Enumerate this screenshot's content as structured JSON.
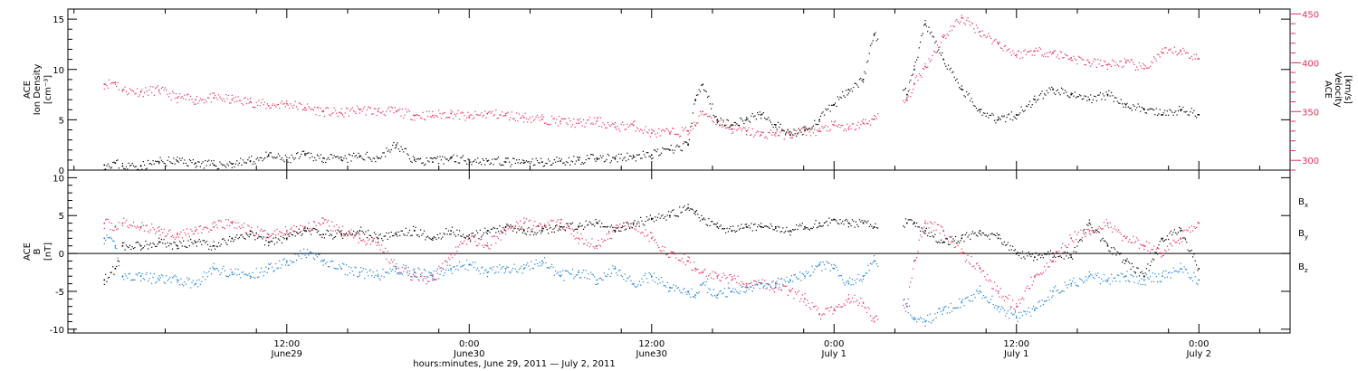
{
  "colors": {
    "black": "#000000",
    "pink": "#e8305a",
    "blue": "#1a7fd8"
  },
  "chart_data": [
    {
      "type": "scatter",
      "panel": "top",
      "ylabel_left": [
        "ACE",
        "Ion Density",
        "[cm⁻³]"
      ],
      "ylabel_right": [
        "ACE",
        "Velocity",
        "[km/s]"
      ],
      "ylim_left": [
        0,
        16
      ],
      "ylim_right": [
        290,
        455
      ],
      "yticks_left": [
        "0",
        "5",
        "10",
        "15"
      ],
      "yticks_right": [
        "300",
        "350",
        "400",
        "450"
      ],
      "series": [
        {
          "color": "#000000",
          "axis": "left",
          "x": [
            0.0,
            0.03,
            0.05,
            0.1,
            0.15,
            0.2,
            0.25,
            0.3,
            0.35,
            0.4,
            0.45,
            0.5,
            0.55,
            0.6,
            0.65,
            0.7,
            0.75,
            0.8,
            0.85,
            0.9,
            0.95,
            1.0,
            1.05,
            1.1,
            1.15,
            1.2,
            1.25,
            1.3,
            1.35,
            1.4,
            1.45,
            1.5,
            1.55,
            1.6,
            1.62,
            1.64,
            1.68,
            1.72,
            1.76,
            1.8,
            1.84,
            1.88,
            1.92,
            1.96,
            2.0,
            2.04,
            2.08,
            2.11,
            2.2,
            2.22,
            2.25,
            2.3,
            2.35,
            2.4,
            2.45,
            2.5,
            2.55,
            2.6,
            2.65,
            2.7,
            2.75,
            2.8,
            2.85,
            2.9,
            2.95,
            3.0
          ],
          "y": [
            0.5,
            0.7,
            0.4,
            0.4,
            0.8,
            0.9,
            0.7,
            0.5,
            0.6,
            0.9,
            1.4,
            1.0,
            1.5,
            1.2,
            1.0,
            1.4,
            1.2,
            2.5,
            1.0,
            0.8,
            1.2,
            1.0,
            0.9,
            0.8,
            0.7,
            0.8,
            0.9,
            1.0,
            1.2,
            1.1,
            1.3,
            1.5,
            2.0,
            2.5,
            7.0,
            8.5,
            5.0,
            4.5,
            5.0,
            5.5,
            4.5,
            3.5,
            4.0,
            5.0,
            6.5,
            8.0,
            9.0,
            13.5,
            7.5,
            10.0,
            14.5,
            11.0,
            8.0,
            6.0,
            5.0,
            5.5,
            7.0,
            8.0,
            7.5,
            7.0,
            7.5,
            6.5,
            6.0,
            5.5,
            6.0,
            5.5
          ]
        },
        {
          "color": "#e8305a",
          "axis": "right",
          "x": [
            0.0,
            0.03,
            0.05,
            0.1,
            0.15,
            0.2,
            0.25,
            0.3,
            0.35,
            0.4,
            0.45,
            0.5,
            0.55,
            0.6,
            0.65,
            0.7,
            0.75,
            0.8,
            0.85,
            0.9,
            0.95,
            1.0,
            1.05,
            1.1,
            1.15,
            1.2,
            1.25,
            1.3,
            1.35,
            1.4,
            1.45,
            1.5,
            1.55,
            1.6,
            1.62,
            1.64,
            1.68,
            1.72,
            1.76,
            1.8,
            1.84,
            1.88,
            1.92,
            1.96,
            2.0,
            2.04,
            2.08,
            2.11,
            2.2,
            2.22,
            2.25,
            2.3,
            2.35,
            2.4,
            2.45,
            2.5,
            2.55,
            2.6,
            2.65,
            2.7,
            2.75,
            2.8,
            2.85,
            2.9,
            2.95,
            3.0
          ],
          "y": [
            378,
            380,
            372,
            370,
            372,
            364,
            362,
            364,
            362,
            360,
            356,
            358,
            354,
            350,
            348,
            352,
            350,
            350,
            346,
            346,
            348,
            344,
            348,
            346,
            344,
            342,
            340,
            338,
            340,
            334,
            336,
            328,
            328,
            330,
            336,
            350,
            340,
            332,
            330,
            326,
            328,
            326,
            330,
            330,
            336,
            332,
            338,
            342,
            362,
            378,
            396,
            426,
            446,
            432,
            420,
            408,
            412,
            410,
            405,
            400,
            398,
            400,
            394,
            410,
            412,
            404
          ]
        }
      ]
    },
    {
      "type": "scatter",
      "panel": "bottom",
      "ylabel_left": [
        "ACE",
        "B",
        "[nT]"
      ],
      "ylim": [
        -10.5,
        11
      ],
      "yticks": [
        "-10",
        "-5",
        "0",
        "5",
        "10"
      ],
      "legend": [
        {
          "name": "Bx",
          "sub": "x",
          "color": "#000000"
        },
        {
          "name": "By",
          "sub": "y",
          "color": "#1a7fd8"
        },
        {
          "name": "Bz",
          "sub": "z",
          "color": "#e8305a"
        }
      ],
      "series": [
        {
          "name": "Bx",
          "color": "#000000",
          "x": [
            0.0,
            0.03,
            0.05,
            0.1,
            0.15,
            0.2,
            0.25,
            0.3,
            0.35,
            0.4,
            0.45,
            0.5,
            0.55,
            0.6,
            0.65,
            0.7,
            0.75,
            0.8,
            0.85,
            0.9,
            0.95,
            1.0,
            1.05,
            1.1,
            1.15,
            1.2,
            1.25,
            1.3,
            1.35,
            1.4,
            1.45,
            1.5,
            1.55,
            1.6,
            1.62,
            1.64,
            1.68,
            1.72,
            1.76,
            1.8,
            1.84,
            1.88,
            1.92,
            1.96,
            2.0,
            2.04,
            2.08,
            2.11,
            2.2,
            2.22,
            2.25,
            2.3,
            2.35,
            2.4,
            2.45,
            2.5,
            2.55,
            2.6,
            2.65,
            2.7,
            2.75,
            2.8,
            2.85,
            2.9,
            2.95,
            3.0
          ],
          "y": [
            -3.5,
            -2.0,
            1.0,
            1.0,
            1.5,
            1.0,
            1.5,
            1.0,
            2.0,
            2.5,
            1.5,
            2.0,
            3.0,
            2.5,
            2.5,
            3.0,
            2.0,
            2.5,
            3.0,
            2.0,
            3.0,
            2.0,
            3.0,
            3.5,
            3.0,
            3.0,
            3.5,
            3.5,
            4.0,
            3.0,
            4.0,
            4.5,
            5.0,
            6.0,
            5.5,
            4.5,
            3.5,
            3.0,
            3.5,
            3.5,
            3.5,
            3.0,
            3.5,
            4.0,
            4.5,
            4.0,
            4.0,
            3.5,
            4.0,
            4.0,
            3.0,
            1.5,
            2.0,
            3.0,
            2.0,
            0.0,
            -0.5,
            0.0,
            -0.5,
            4.0,
            1.0,
            -1.0,
            -3.0,
            2.0,
            3.0,
            -2.0
          ]
        },
        {
          "name": "By",
          "color": "#1a7fd8",
          "x": [
            0.0,
            0.03,
            0.05,
            0.1,
            0.15,
            0.2,
            0.25,
            0.3,
            0.35,
            0.4,
            0.45,
            0.5,
            0.55,
            0.6,
            0.65,
            0.7,
            0.75,
            0.8,
            0.85,
            0.9,
            0.95,
            1.0,
            1.05,
            1.1,
            1.15,
            1.2,
            1.25,
            1.3,
            1.35,
            1.4,
            1.45,
            1.5,
            1.55,
            1.6,
            1.62,
            1.64,
            1.68,
            1.72,
            1.76,
            1.8,
            1.84,
            1.88,
            1.92,
            1.96,
            2.0,
            2.04,
            2.08,
            2.11,
            2.2,
            2.22,
            2.25,
            2.3,
            2.35,
            2.4,
            2.45,
            2.5,
            2.55,
            2.6,
            2.65,
            2.7,
            2.75,
            2.8,
            2.85,
            2.9,
            2.95,
            3.0
          ],
          "y": [
            2.0,
            1.0,
            -3.0,
            -3.0,
            -3.5,
            -3.5,
            -4.0,
            -2.0,
            -2.5,
            -3.0,
            -2.0,
            -1.0,
            0.0,
            -1.0,
            -2.0,
            -2.5,
            -3.0,
            -2.0,
            -2.5,
            -3.0,
            -2.0,
            -1.5,
            -2.5,
            -2.0,
            -2.0,
            -1.0,
            -3.0,
            -2.5,
            -3.5,
            -2.0,
            -4.0,
            -3.0,
            -4.5,
            -5.0,
            -5.5,
            -4.0,
            -5.5,
            -5.0,
            -4.5,
            -4.0,
            -4.0,
            -3.5,
            -3.0,
            -1.5,
            -2.0,
            -4.0,
            -3.0,
            -1.0,
            -7.0,
            -8.5,
            -9.0,
            -7.5,
            -6.5,
            -5.0,
            -7.0,
            -8.5,
            -7.5,
            -5.0,
            -4.0,
            -3.0,
            -3.5,
            -3.0,
            -3.5,
            -3.0,
            -2.0,
            -3.5
          ]
        },
        {
          "name": "Bz",
          "color": "#e8305a",
          "x": [
            0.0,
            0.03,
            0.05,
            0.1,
            0.15,
            0.2,
            0.25,
            0.3,
            0.35,
            0.4,
            0.45,
            0.5,
            0.55,
            0.6,
            0.65,
            0.7,
            0.75,
            0.8,
            0.85,
            0.9,
            0.95,
            1.0,
            1.05,
            1.1,
            1.15,
            1.2,
            1.25,
            1.3,
            1.35,
            1.4,
            1.45,
            1.5,
            1.55,
            1.6,
            1.62,
            1.64,
            1.68,
            1.72,
            1.76,
            1.8,
            1.84,
            1.88,
            1.92,
            1.96,
            2.0,
            2.04,
            2.08,
            2.11,
            2.2,
            2.22,
            2.25,
            2.3,
            2.35,
            2.4,
            2.45,
            2.5,
            2.55,
            2.6,
            2.65,
            2.7,
            2.75,
            2.8,
            2.85,
            2.9,
            2.95,
            3.0
          ],
          "y": [
            4.0,
            3.5,
            4.0,
            3.5,
            3.0,
            2.5,
            3.0,
            3.5,
            4.0,
            3.0,
            2.5,
            3.0,
            3.5,
            4.0,
            3.0,
            2.0,
            1.5,
            -2.0,
            -3.0,
            -3.5,
            0.0,
            2.0,
            1.0,
            3.0,
            4.0,
            3.5,
            4.0,
            2.0,
            1.0,
            3.0,
            4.0,
            2.0,
            0.0,
            -1.0,
            -2.0,
            -2.5,
            -3.0,
            -3.5,
            -4.0,
            -4.0,
            -4.5,
            -5.0,
            -6.0,
            -8.0,
            -7.5,
            -6.0,
            -6.5,
            -9.0,
            -7.0,
            -1.0,
            4.0,
            3.0,
            0.0,
            -2.0,
            -5.0,
            -7.0,
            -3.0,
            -1.0,
            2.0,
            3.0,
            4.0,
            2.0,
            1.0,
            0.0,
            2.0,
            4.0
          ]
        }
      ]
    }
  ],
  "x_axis": {
    "label": "hours:minutes, June 29, 2011 — July  2, 2011",
    "ticks": [
      {
        "x": 0.5,
        "time": "12:00",
        "day": "June29"
      },
      {
        "x": 1.0,
        "time": "0:00",
        "day": "June30"
      },
      {
        "x": 1.5,
        "time": "12:00",
        "day": "June30"
      },
      {
        "x": 2.0,
        "time": "0:00",
        "day": "July 1"
      },
      {
        "x": 2.5,
        "time": "12:00",
        "day": "July 1"
      },
      {
        "x": 3.0,
        "time": "0:00",
        "day": "July 2"
      }
    ],
    "xlim": [
      -0.1,
      3.25
    ]
  },
  "gaps": [
    [
      0.04,
      0.05
    ],
    [
      2.12,
      2.19
    ]
  ]
}
